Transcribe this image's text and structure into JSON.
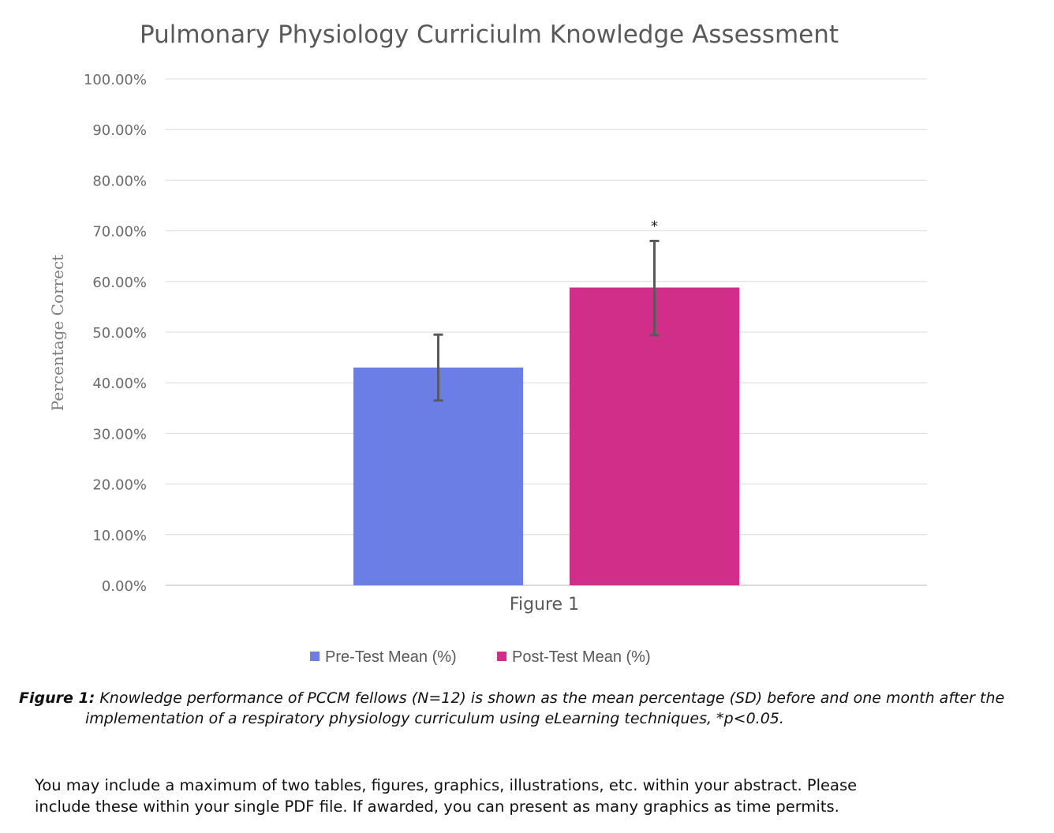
{
  "chart_data": {
    "type": "bar",
    "title": "Pulmonary Physiology Curriciulm Knowledge Assessment",
    "xlabel": "Figure 1",
    "ylabel": "Percentage Correct",
    "categories": [
      "Figure 1"
    ],
    "ylim": [
      0,
      100
    ],
    "yticks": [
      "0.00%",
      "10.00%",
      "20.00%",
      "30.00%",
      "40.00%",
      "50.00%",
      "60.00%",
      "70.00%",
      "80.00%",
      "90.00%",
      "100.00%"
    ],
    "grid": true,
    "legend_position": "bottom",
    "series": [
      {
        "name": "Pre-Test Mean (%)",
        "values": [
          43
        ],
        "error_low": [
          36.5
        ],
        "error_high": [
          49.5
        ],
        "color": "#6a7ee6",
        "annotation": ""
      },
      {
        "name": "Post-Test Mean (%)",
        "values": [
          58.8
        ],
        "error_low": [
          49.4
        ],
        "error_high": [
          68.0
        ],
        "color": "#d12e8a",
        "annotation": "*"
      }
    ]
  },
  "caption": {
    "label": "Figure 1:",
    "text": " Knowledge performance of PCCM fellows (N=12) is shown as the mean percentage (SD) before and one month after the implementation of a respiratory physiology curriculum using eLearning techniques, *p<0.05."
  },
  "note": {
    "line1": "You may include a maximum of two tables, figures, graphics, illustrations, etc.  within your abstract. Please",
    "line2": "include these within your single PDF file. If awarded, you can present as many graphics as time permits."
  }
}
